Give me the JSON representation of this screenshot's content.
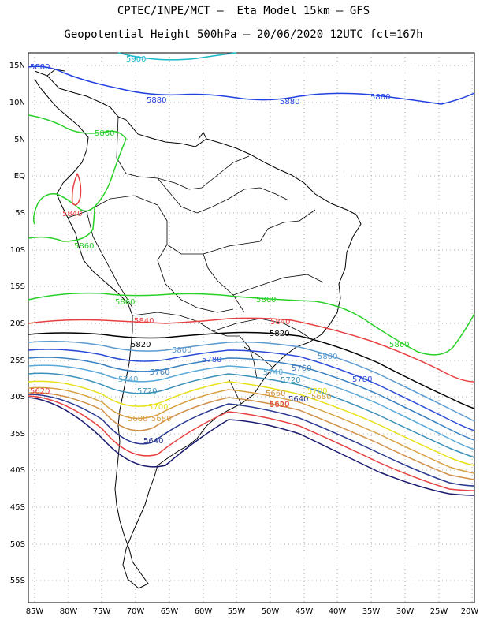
{
  "title_line1": "CPTEC/INPE/MCT –  Eta Model 15km – GFS",
  "title_line2": "Geopotential Height 500hPa – 20/06/2020 12UTC fct=167h",
  "lat_labels": [
    "15N",
    "10N",
    "5N",
    "EQ",
    "5S",
    "10S",
    "15S",
    "20S",
    "25S",
    "30S",
    "35S",
    "40S",
    "45S",
    "50S",
    "55S"
  ],
  "lon_labels": [
    "85W",
    "80W",
    "75W",
    "70W",
    "65W",
    "60W",
    "55W",
    "50W",
    "45W",
    "40W",
    "35W",
    "30W",
    "25W",
    "20W"
  ],
  "contour_labels": {
    "c5900": "5900",
    "c5880a": "5880",
    "c5880b": "5880",
    "c5880c": "5880",
    "c5880d": "5880",
    "c5880e": "5880",
    "c5860a": "5860",
    "c5860b": "5860",
    "c5860c": "5860",
    "c5860d": "5860",
    "c5860e": "5860",
    "c5840a": "5840",
    "c5840b": "5840",
    "c5840c": "5840",
    "c5820a": "5820",
    "c5820b": "5820",
    "c5800a": "5800",
    "c5800b": "5800",
    "c5780a": "5780",
    "c5780b": "5780",
    "c5760a": "5760",
    "c5760b": "5760",
    "c5740a": "5740",
    "c5740b": "5740",
    "c5720a": "5720",
    "c5720b": "5720",
    "c5700a": "5700",
    "c5700b": "5700",
    "c5680a": "5680",
    "c5680b": "5680",
    "c5680c": "5680",
    "c5660a": "5660",
    "c5660b": "5660",
    "c5640a": "5640",
    "c5640b": "5640",
    "c5620a": "5620",
    "c5620b": "5620"
  },
  "colors": {
    "h5900": "#19b9c8",
    "h5880": "#2040e0",
    "h5860": "#28d028",
    "h5840": "#e84040",
    "h5820": "#000000",
    "h5800": "#5a9ad0",
    "h5780": "#2a4ad8",
    "h5760": "#3a80c0",
    "h5740": "#58a8d8",
    "h5720": "#3a90b8",
    "h5700": "#e8e018",
    "h5680": "#d8a040",
    "h5660": "#d09048",
    "h5640": "#2a3a90",
    "h5620": "#e84040",
    "h5600": "#1a1a70"
  }
}
